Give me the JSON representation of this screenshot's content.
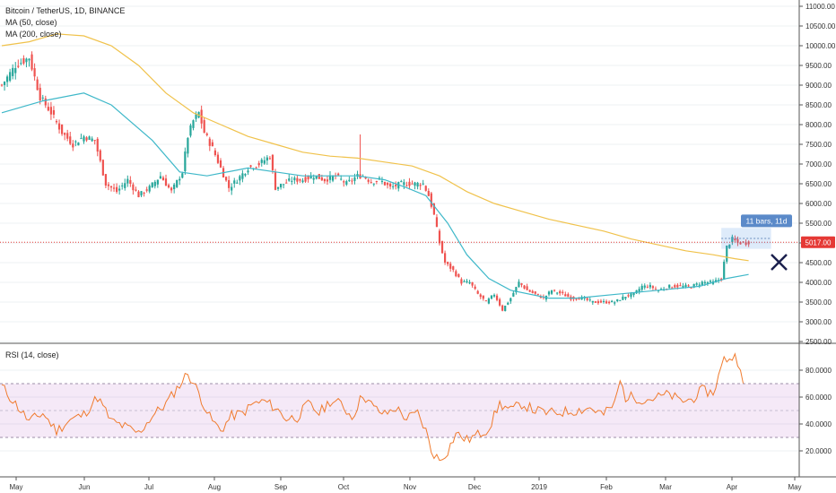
{
  "legend": {
    "symbol": "Bitcoin / TetherUS, 1D, BINANCE",
    "ma50": "MA (50, close)",
    "ma200": "MA (200, close)",
    "rsi": "RSI (14, close)"
  },
  "price_tag": "5017.00",
  "measure_label": "11 bars, 11d",
  "chart_data": [
    {
      "type": "candlestick",
      "title": "Bitcoin / TetherUS, 1D, BINANCE",
      "y_ticks": [
        "11000.00",
        "10500.00",
        "10000.00",
        "9500.00",
        "9000.00",
        "8500.00",
        "8000.00",
        "7500.00",
        "7000.00",
        "6500.00",
        "6000.00",
        "5500.00",
        "5000.00",
        "4500.00",
        "4000.00",
        "3500.00",
        "3000.00",
        "2500.00"
      ],
      "x_ticks": [
        "May",
        "Jun",
        "Jul",
        "Aug",
        "Sep",
        "Oct",
        "Nov",
        "Dec",
        "2019",
        "Feb",
        "Mar",
        "Apr",
        "May"
      ],
      "ylim": [
        2500,
        11000
      ],
      "last_price": 5017,
      "close_anchors": [
        [
          0,
          9000
        ],
        [
          5,
          9500
        ],
        [
          10,
          9700
        ],
        [
          14,
          8700
        ],
        [
          18,
          8300
        ],
        [
          22,
          7800
        ],
        [
          26,
          7500
        ],
        [
          30,
          7700
        ],
        [
          34,
          7600
        ],
        [
          38,
          6500
        ],
        [
          42,
          6300
        ],
        [
          46,
          6600
        ],
        [
          50,
          6200
        ],
        [
          54,
          6400
        ],
        [
          58,
          6700
        ],
        [
          62,
          6300
        ],
        [
          66,
          6800
        ],
        [
          68,
          7700
        ],
        [
          70,
          8100
        ],
        [
          72,
          8300
        ],
        [
          74,
          7800
        ],
        [
          77,
          7400
        ],
        [
          80,
          6900
        ],
        [
          83,
          6400
        ],
        [
          86,
          6600
        ],
        [
          90,
          6900
        ],
        [
          94,
          7000
        ],
        [
          98,
          7200
        ],
        [
          100,
          6400
        ],
        [
          103,
          6500
        ],
        [
          106,
          6600
        ],
        [
          110,
          6600
        ],
        [
          114,
          6700
        ],
        [
          118,
          6600
        ],
        [
          122,
          6700
        ],
        [
          126,
          6500
        ],
        [
          130,
          6700
        ],
        [
          132,
          6700
        ],
        [
          135,
          6550
        ],
        [
          138,
          6600
        ],
        [
          142,
          6400
        ],
        [
          146,
          6500
        ],
        [
          150,
          6500
        ],
        [
          154,
          6500
        ],
        [
          156,
          6200
        ],
        [
          158,
          5700
        ],
        [
          160,
          5000
        ],
        [
          162,
          4500
        ],
        [
          165,
          4300
        ],
        [
          168,
          4000
        ],
        [
          171,
          4000
        ],
        [
          174,
          3700
        ],
        [
          177,
          3500
        ],
        [
          180,
          3700
        ],
        [
          183,
          3300
        ],
        [
          186,
          3600
        ],
        [
          189,
          4000
        ],
        [
          192,
          3800
        ],
        [
          195,
          3700
        ],
        [
          198,
          3600
        ],
        [
          201,
          3800
        ],
        [
          205,
          3700
        ],
        [
          208,
          3600
        ],
        [
          212,
          3600
        ],
        [
          216,
          3500
        ],
        [
          220,
          3500
        ],
        [
          224,
          3500
        ],
        [
          228,
          3650
        ],
        [
          231,
          3700
        ],
        [
          234,
          3900
        ],
        [
          237,
          3900
        ],
        [
          240,
          3800
        ],
        [
          244,
          3900
        ],
        [
          248,
          3900
        ],
        [
          252,
          3900
        ],
        [
          256,
          4000
        ],
        [
          260,
          4000
        ],
        [
          263,
          4100
        ],
        [
          265,
          4900
        ],
        [
          267,
          5100
        ],
        [
          269,
          5000
        ],
        [
          272,
          5000
        ],
        [
          273,
          5017
        ]
      ],
      "ma50": [
        [
          0,
          8300
        ],
        [
          15,
          8600
        ],
        [
          30,
          8800
        ],
        [
          40,
          8500
        ],
        [
          55,
          7600
        ],
        [
          65,
          6800
        ],
        [
          75,
          6700
        ],
        [
          90,
          6900
        ],
        [
          100,
          6800
        ],
        [
          110,
          6700
        ],
        [
          120,
          6700
        ],
        [
          130,
          6700
        ],
        [
          140,
          6600
        ],
        [
          148,
          6400
        ],
        [
          155,
          6200
        ],
        [
          163,
          5500
        ],
        [
          170,
          4700
        ],
        [
          178,
          4100
        ],
        [
          186,
          3800
        ],
        [
          200,
          3600
        ],
        [
          210,
          3600
        ],
        [
          225,
          3700
        ],
        [
          240,
          3800
        ],
        [
          255,
          3900
        ],
        [
          265,
          4100
        ],
        [
          273,
          4200
        ]
      ],
      "ma200": [
        [
          0,
          10000
        ],
        [
          10,
          10100
        ],
        [
          20,
          10300
        ],
        [
          30,
          10250
        ],
        [
          40,
          10000
        ],
        [
          50,
          9500
        ],
        [
          60,
          8800
        ],
        [
          70,
          8300
        ],
        [
          80,
          8000
        ],
        [
          90,
          7700
        ],
        [
          100,
          7500
        ],
        [
          110,
          7300
        ],
        [
          120,
          7200
        ],
        [
          130,
          7150
        ],
        [
          140,
          7050
        ],
        [
          150,
          6950
        ],
        [
          160,
          6700
        ],
        [
          170,
          6300
        ],
        [
          180,
          6000
        ],
        [
          190,
          5800
        ],
        [
          200,
          5600
        ],
        [
          210,
          5450
        ],
        [
          220,
          5300
        ],
        [
          230,
          5100
        ],
        [
          240,
          4950
        ],
        [
          250,
          4800
        ],
        [
          260,
          4700
        ],
        [
          268,
          4600
        ],
        [
          273,
          4550
        ]
      ],
      "measure": {
        "bars": 11,
        "days": 11
      }
    },
    {
      "type": "line",
      "title": "RSI (14, close)",
      "y_ticks": [
        "80.0000",
        "60.0000",
        "40.0000",
        "20.0000"
      ],
      "ylim": [
        0,
        100
      ],
      "bands": {
        "upper": 70,
        "lower": 30
      },
      "anchors": [
        [
          0,
          68
        ],
        [
          5,
          55
        ],
        [
          10,
          42
        ],
        [
          15,
          48
        ],
        [
          20,
          35
        ],
        [
          25,
          43
        ],
        [
          30,
          47
        ],
        [
          35,
          60
        ],
        [
          40,
          42
        ],
        [
          45,
          38
        ],
        [
          50,
          33
        ],
        [
          55,
          46
        ],
        [
          60,
          55
        ],
        [
          66,
          72
        ],
        [
          68,
          78
        ],
        [
          72,
          63
        ],
        [
          76,
          45
        ],
        [
          80,
          35
        ],
        [
          84,
          46
        ],
        [
          88,
          48
        ],
        [
          92,
          55
        ],
        [
          96,
          57
        ],
        [
          100,
          52
        ],
        [
          104,
          44
        ],
        [
          108,
          45
        ],
        [
          112,
          55
        ],
        [
          116,
          48
        ],
        [
          120,
          57
        ],
        [
          124,
          55
        ],
        [
          128,
          45
        ],
        [
          132,
          62
        ],
        [
          136,
          52
        ],
        [
          140,
          47
        ],
        [
          144,
          52
        ],
        [
          148,
          44
        ],
        [
          152,
          48
        ],
        [
          155,
          35
        ],
        [
          157,
          20
        ],
        [
          160,
          13
        ],
        [
          163,
          20
        ],
        [
          166,
          33
        ],
        [
          170,
          28
        ],
        [
          175,
          33
        ],
        [
          178,
          37
        ],
        [
          182,
          55
        ],
        [
          186,
          50
        ],
        [
          190,
          55
        ],
        [
          195,
          50
        ],
        [
          200,
          48
        ],
        [
          205,
          49
        ],
        [
          210,
          50
        ],
        [
          215,
          52
        ],
        [
          220,
          47
        ],
        [
          224,
          55
        ],
        [
          226,
          72
        ],
        [
          228,
          60
        ],
        [
          231,
          60
        ],
        [
          235,
          58
        ],
        [
          240,
          60
        ],
        [
          244,
          62
        ],
        [
          248,
          57
        ],
        [
          252,
          58
        ],
        [
          256,
          65
        ],
        [
          260,
          63
        ],
        [
          264,
          88
        ],
        [
          268,
          90
        ],
        [
          270,
          84
        ],
        [
          271,
          68
        ]
      ]
    }
  ]
}
